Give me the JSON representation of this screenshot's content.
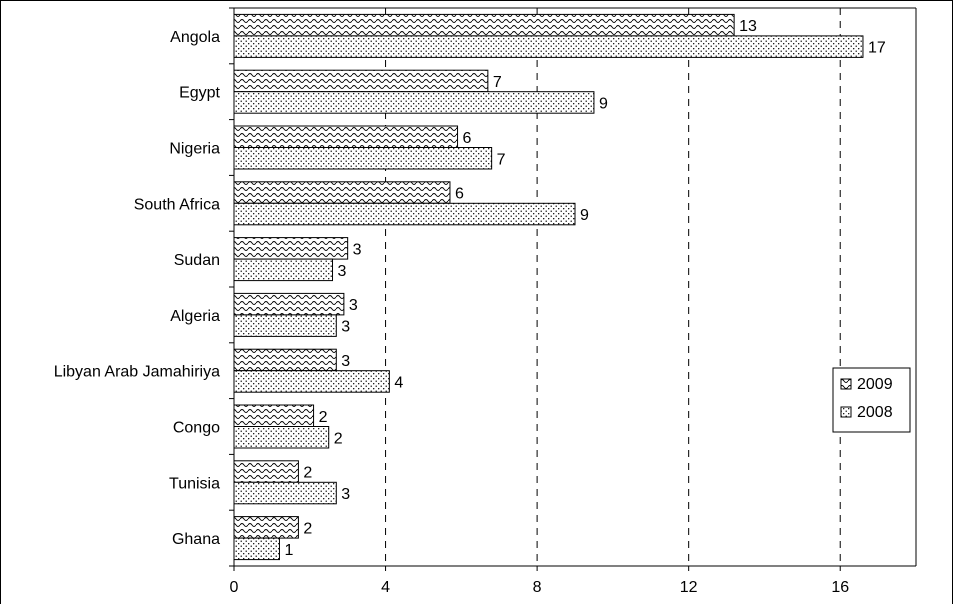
{
  "chart_data": {
    "type": "bar",
    "orientation": "horizontal",
    "categories": [
      "Angola",
      "Egypt",
      "Nigeria",
      "South Africa",
      "Sudan",
      "Algeria",
      "Libyan Arab Jamahiriya",
      "Congo",
      "Tunisia",
      "Ghana"
    ],
    "series": [
      {
        "name": "2009",
        "pattern": "wave",
        "values": [
          13.2,
          6.7,
          5.9,
          5.7,
          3.0,
          2.9,
          2.7,
          2.1,
          1.7,
          1.7
        ],
        "labels": [
          "13",
          "7",
          "6",
          "6",
          "3",
          "3",
          "3",
          "2",
          "2",
          "2"
        ]
      },
      {
        "name": "2008",
        "pattern": "dots",
        "values": [
          16.6,
          9.5,
          6.8,
          9.0,
          2.6,
          2.7,
          4.1,
          2.5,
          2.7,
          1.2
        ],
        "labels": [
          "17",
          "9",
          "7",
          "9",
          "3",
          "3",
          "4",
          "2",
          "3",
          "1"
        ]
      }
    ],
    "xlim": [
      0,
      18
    ],
    "xticks": [
      0,
      4,
      8,
      12,
      16
    ],
    "tick_labels": [
      "0",
      "4",
      "8",
      "12",
      "16"
    ],
    "gridlines": "vertical dashed at 4, 8, 12, 16",
    "legend": {
      "placement": "right",
      "entries": [
        "2009",
        "2008"
      ]
    },
    "colors": {
      "bar_fill": "#ffffff",
      "pattern": "#000000",
      "outline": "#000000"
    }
  }
}
